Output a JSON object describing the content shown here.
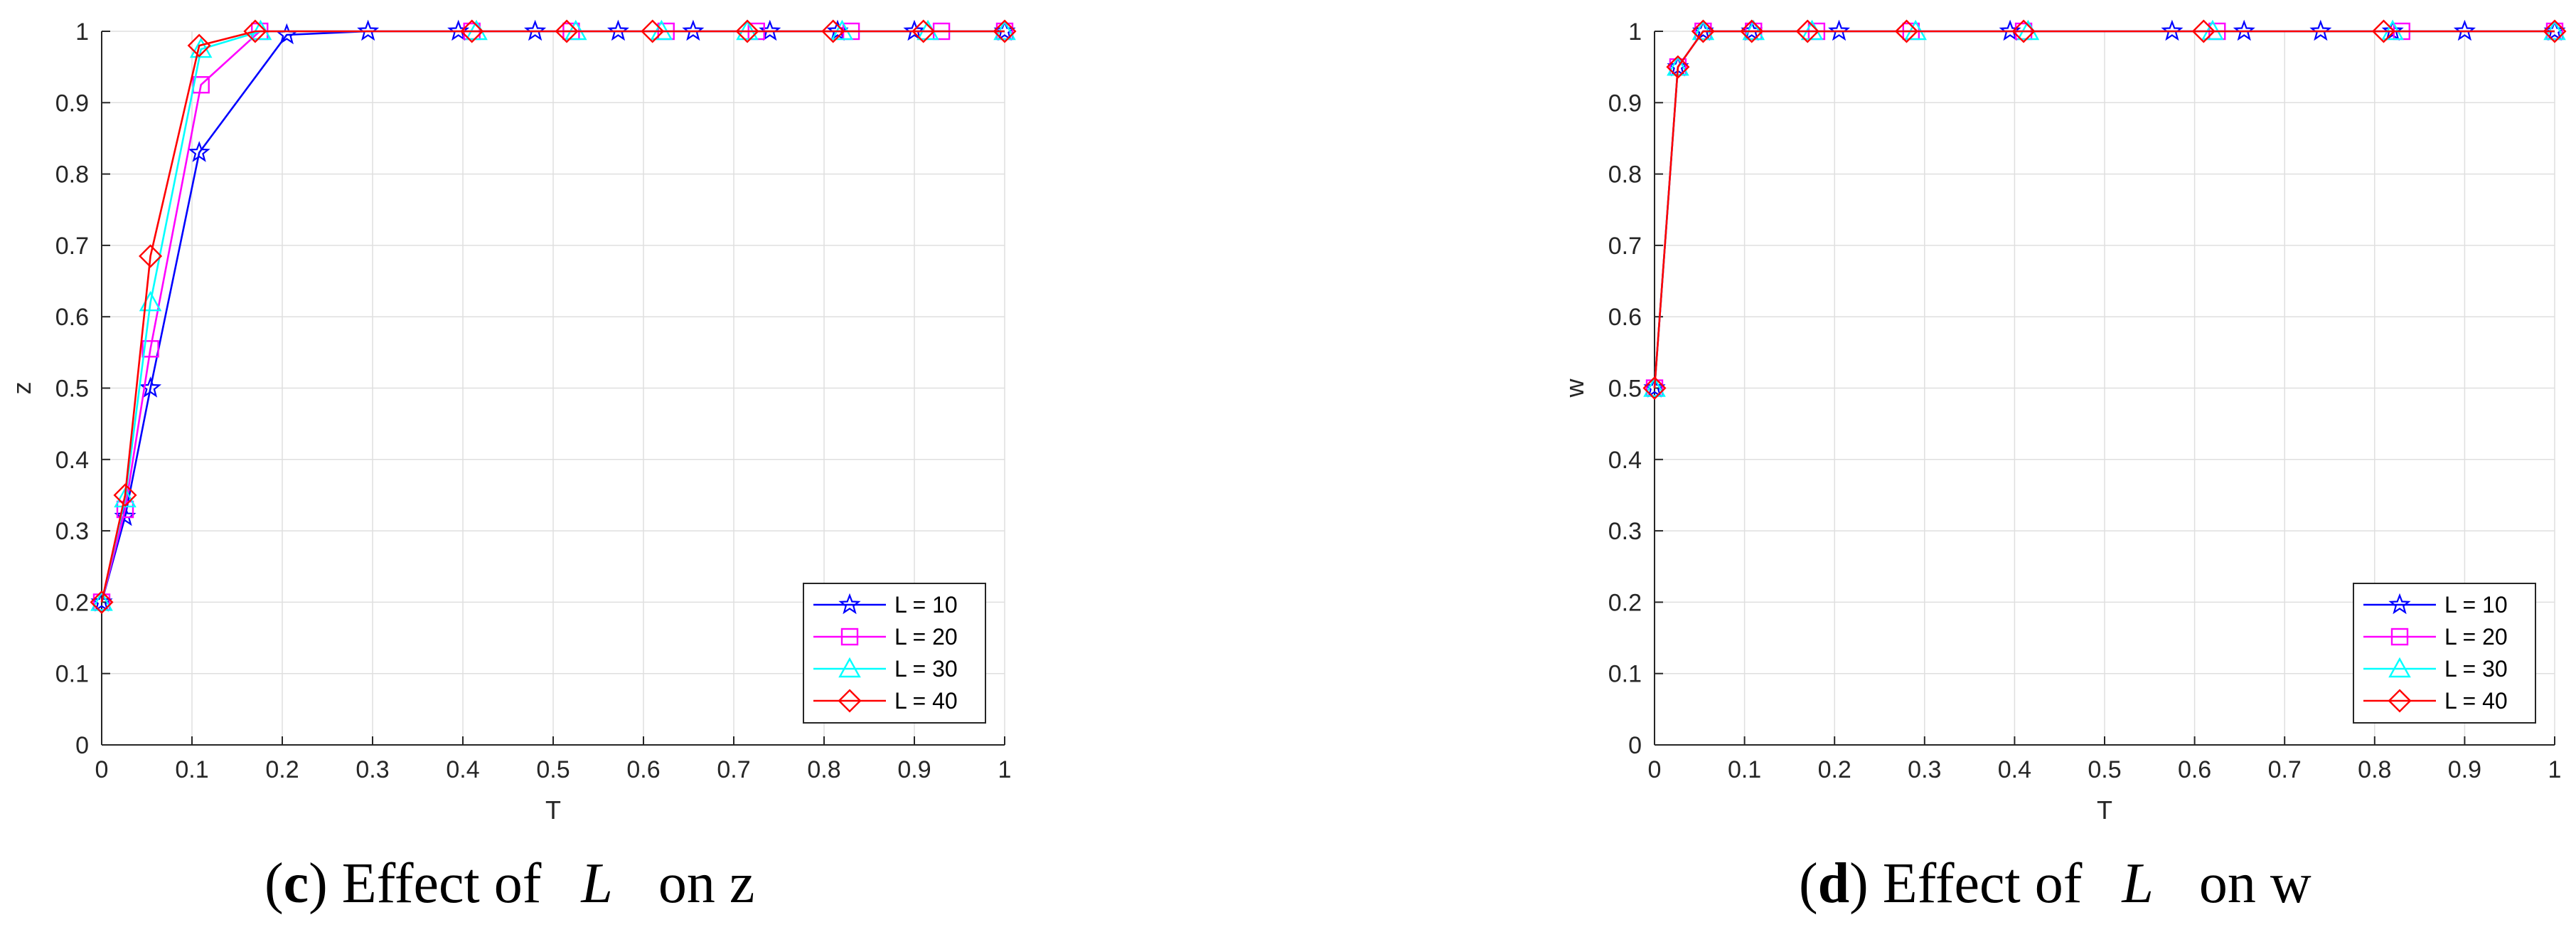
{
  "captions": [
    {
      "open": "(",
      "letter": "c",
      "close": ")",
      "prefix": " Effect of ",
      "var": "L",
      "suffix": "on z"
    },
    {
      "open": "(",
      "letter": "d",
      "close": ")",
      "prefix": " Effect of ",
      "var": "L",
      "suffix": "on w"
    }
  ],
  "chart_data": [
    {
      "type": "line",
      "title": "",
      "xlabel": "T",
      "ylabel": "z",
      "xlim": [
        0,
        1
      ],
      "ylim": [
        0,
        1
      ],
      "xticks": [
        0,
        0.1,
        0.2,
        0.3,
        0.4,
        0.5,
        0.6,
        0.7,
        0.8,
        0.9,
        1
      ],
      "yticks": [
        0,
        0.1,
        0.2,
        0.3,
        0.4,
        0.5,
        0.6,
        0.7,
        0.8,
        0.9,
        1
      ],
      "xtick_labels": [
        "0",
        "0.1",
        "0.2",
        "0.3",
        "0.4",
        "0.5",
        "0.6",
        "0.7",
        "0.8",
        "0.9",
        "1"
      ],
      "ytick_labels": [
        "0",
        "0.1",
        "0.2",
        "0.3",
        "0.4",
        "0.5",
        "0.6",
        "0.7",
        "0.8",
        "0.9",
        "1"
      ],
      "grid": true,
      "legend": "bottom-right",
      "series": [
        {
          "name": "L = 10",
          "color": "#0000ff",
          "marker": "pentagram",
          "x": [
            0,
            0.026,
            0.054,
            0.108,
            0.205,
            0.295,
            0.395,
            0.48,
            0.572,
            0.655,
            0.74,
            0.815,
            0.9,
            1.0
          ],
          "y": [
            0.2,
            0.32,
            0.5,
            0.83,
            0.995,
            1,
            1,
            1,
            1,
            1,
            1,
            1,
            1,
            1
          ]
        },
        {
          "name": "L = 20",
          "color": "#ff00ff",
          "marker": "square",
          "x": [
            0,
            0.026,
            0.054,
            0.11,
            0.175,
            0.41,
            0.52,
            0.625,
            0.725,
            0.83,
            0.93,
            1.0
          ],
          "y": [
            0.2,
            0.33,
            0.555,
            0.925,
            1,
            1,
            1,
            1,
            1,
            1,
            1,
            1
          ]
        },
        {
          "name": "L = 30",
          "color": "#00ffff",
          "marker": "triangle",
          "x": [
            0,
            0.026,
            0.054,
            0.11,
            0.176,
            0.415,
            0.525,
            0.62,
            0.715,
            0.82,
            0.915,
            1.0
          ],
          "y": [
            0.2,
            0.345,
            0.62,
            0.975,
            1,
            1,
            1,
            1,
            1,
            1,
            1,
            1
          ]
        },
        {
          "name": "L = 40",
          "color": "#ff0000",
          "marker": "diamond",
          "x": [
            0,
            0.026,
            0.054,
            0.108,
            0.17,
            0.41,
            0.515,
            0.61,
            0.715,
            0.81,
            0.91,
            1.0
          ],
          "y": [
            0.2,
            0.35,
            0.685,
            0.98,
            1,
            1,
            1,
            1,
            1,
            1,
            1,
            1
          ]
        }
      ]
    },
    {
      "type": "line",
      "title": "",
      "xlabel": "T",
      "ylabel": "w",
      "xlim": [
        0,
        1
      ],
      "ylim": [
        0,
        1
      ],
      "xticks": [
        0,
        0.1,
        0.2,
        0.3,
        0.4,
        0.5,
        0.6,
        0.7,
        0.8,
        0.9,
        1
      ],
      "yticks": [
        0,
        0.1,
        0.2,
        0.3,
        0.4,
        0.5,
        0.6,
        0.7,
        0.8,
        0.9,
        1
      ],
      "xtick_labels": [
        "0",
        "0.1",
        "0.2",
        "0.3",
        "0.4",
        "0.5",
        "0.6",
        "0.7",
        "0.8",
        "0.9",
        "1"
      ],
      "ytick_labels": [
        "0",
        "0.1",
        "0.2",
        "0.3",
        "0.4",
        "0.5",
        "0.6",
        "0.7",
        "0.8",
        "0.9",
        "1"
      ],
      "grid": true,
      "legend": "bottom-right",
      "series": [
        {
          "name": "L = 10",
          "color": "#0000ff",
          "marker": "pentagram",
          "x": [
            0,
            0.026,
            0.054,
            0.108,
            0.205,
            0.395,
            0.575,
            0.655,
            0.74,
            0.82,
            0.9,
            1.0
          ],
          "y": [
            0.5,
            0.95,
            1,
            1,
            1,
            1,
            1,
            1,
            1,
            1,
            1,
            1
          ]
        },
        {
          "name": "L = 20",
          "color": "#ff00ff",
          "marker": "square",
          "x": [
            0,
            0.026,
            0.054,
            0.11,
            0.18,
            0.285,
            0.41,
            0.625,
            0.83,
            1.0
          ],
          "y": [
            0.5,
            0.95,
            1,
            1,
            1,
            1,
            1,
            1,
            1,
            1
          ]
        },
        {
          "name": "L = 30",
          "color": "#00ffff",
          "marker": "triangle",
          "x": [
            0,
            0.026,
            0.054,
            0.11,
            0.175,
            0.29,
            0.415,
            0.62,
            0.82,
            1.0
          ],
          "y": [
            0.5,
            0.95,
            1,
            1,
            1,
            1,
            1,
            1,
            1,
            1
          ]
        },
        {
          "name": "L = 40",
          "color": "#ff0000",
          "marker": "diamond",
          "x": [
            0,
            0.026,
            0.054,
            0.108,
            0.17,
            0.28,
            0.41,
            0.61,
            0.81,
            1.0
          ],
          "y": [
            0.5,
            0.95,
            1,
            1,
            1,
            1,
            1,
            1,
            1,
            1
          ]
        }
      ]
    }
  ]
}
